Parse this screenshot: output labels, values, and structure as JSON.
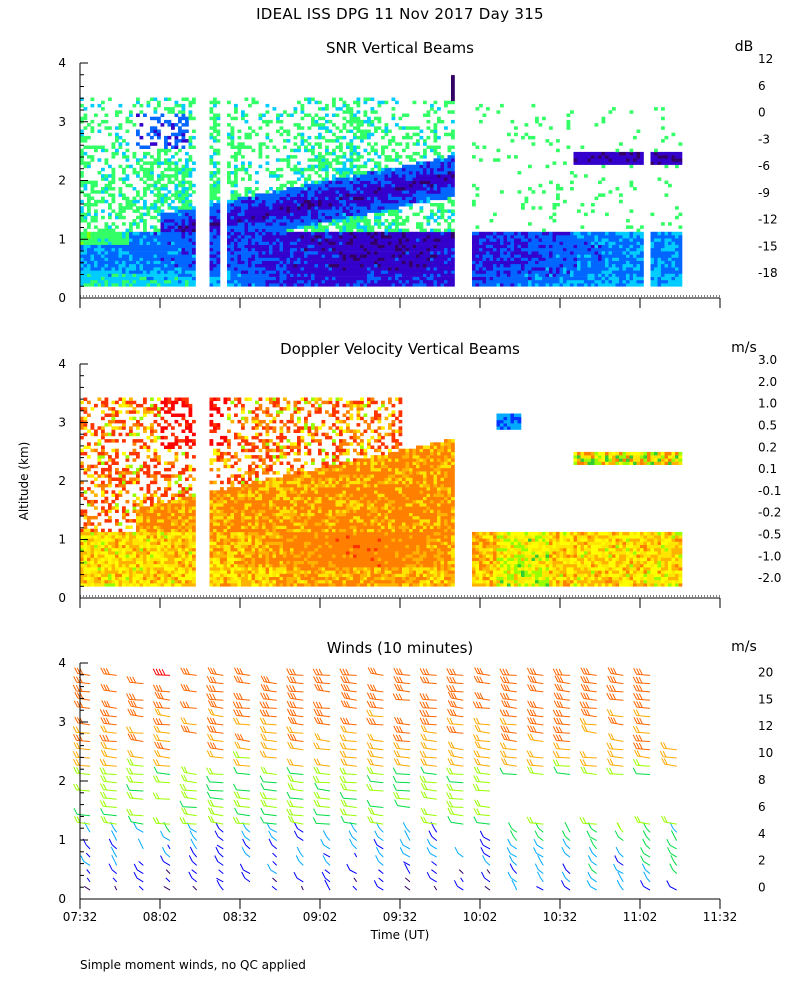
{
  "header": {
    "title": "IDEAL ISS DPG  11 Nov 2017 Day 315"
  },
  "footnote": "Simple moment winds, no QC applied",
  "colors": {
    "snr": [
      "#80ff00",
      "#33ff66",
      "#00ccff",
      "#0066ff",
      "#3300cc",
      "#330066",
      "#ff1a00",
      "#ff8000",
      "#ffcc00"
    ],
    "velocity": [
      "#ff0000",
      "#ff3300",
      "#ff8000",
      "#ffb300",
      "#ffe600",
      "#ffff00",
      "#99ff00",
      "#33cc33",
      "#00aaff",
      "#0033ff",
      "#330099",
      "#330033"
    ],
    "winds": [
      "#000000",
      "#330066",
      "#0000ff",
      "#00aaff",
      "#00dd44",
      "#99ff00",
      "#ffaa00",
      "#ff6600",
      "#ff0000"
    ]
  },
  "chart_data": [
    {
      "type": "heatmap",
      "title": "SNR Vertical Beams",
      "ylabel": "",
      "ylim": [
        0,
        4
      ],
      "yticks": [
        "0",
        "1",
        "2",
        "3",
        "4"
      ],
      "xlim": [
        "07:32",
        "11:32"
      ],
      "colorbar": {
        "unit": "dB",
        "labels": [
          "-18",
          "-15",
          "-12",
          "-9",
          "-6",
          "-3",
          "0",
          "6",
          "12"
        ]
      },
      "features": [
        {
          "name": "low dense echo layer",
          "altitude_km": [
            0.2,
            1.1
          ],
          "time": [
            "07:32",
            "11:16"
          ]
        },
        {
          "name": "sloping strong band",
          "altitude_km": [
            1.1,
            2.2
          ],
          "time": [
            "08:02",
            "09:55"
          ]
        },
        {
          "name": "upper diffuse layer",
          "altitude_km": [
            2.2,
            3.4
          ],
          "time": [
            "07:32",
            "11:16"
          ]
        }
      ]
    },
    {
      "type": "heatmap",
      "title": "Doppler Velocity Vertical Beams",
      "ylabel": "Altitude (km)",
      "ylim": [
        0,
        4
      ],
      "yticks": [
        "0",
        "1",
        "2",
        "3",
        "4"
      ],
      "xlim": [
        "07:32",
        "11:32"
      ],
      "colorbar": {
        "unit": "m/s",
        "labels": [
          "-2.0",
          "-1.0",
          "-0.5",
          "-0.2",
          "-0.1",
          "0.1",
          "0.2",
          "0.5",
          "1.0",
          "2.0",
          "3.0"
        ]
      }
    },
    {
      "type": "scatter",
      "title": "Winds (10 minutes)",
      "xlabel": "Time (UT)",
      "ylim": [
        0,
        4
      ],
      "yticks": [
        "0",
        "1",
        "2",
        "3",
        "4"
      ],
      "xticks": [
        "07:32",
        "08:02",
        "08:32",
        "09:02",
        "09:32",
        "10:02",
        "10:32",
        "11:02",
        "11:32"
      ],
      "colorbar": {
        "unit": "m/s",
        "labels": [
          "0",
          "2",
          "4",
          "6",
          "8",
          "10",
          "12",
          "15",
          "20"
        ]
      },
      "barb_interval_minutes": 10,
      "time_range": [
        "07:32",
        "11:16"
      ]
    }
  ]
}
